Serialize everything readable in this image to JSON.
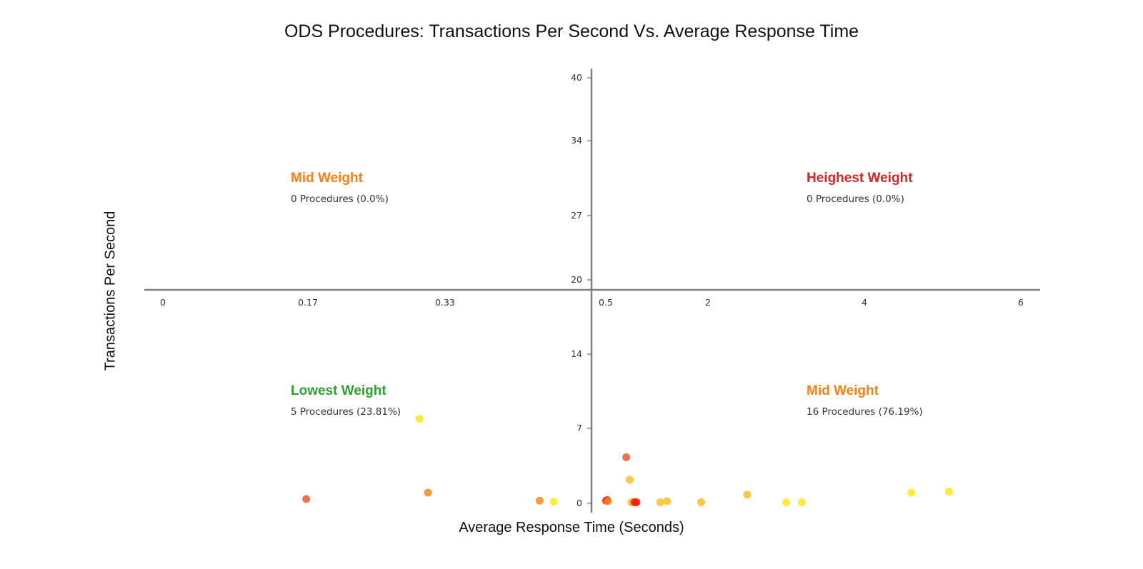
{
  "chart_data": {
    "type": "scatter",
    "title": "ODS Procedures: Transactions Per Second Vs. Average Response Time",
    "xlabel": "Average Response Time (Seconds)",
    "ylabel": "Transactions Per Second",
    "x_ticks": [
      "0",
      "0.17",
      "0.33",
      "0.5",
      "2",
      "4",
      "6"
    ],
    "y_ticks": [
      "0",
      "7",
      "14",
      "20",
      "27",
      "34",
      "40"
    ],
    "x_scale": "piecewise: left half 0 to 0.5, right half 0.5 to 6",
    "y_scale": "piecewise: bottom half 0 to 20, top half 20 to 40",
    "xlim": [
      0,
      6
    ],
    "ylim": [
      0,
      40
    ],
    "grid": false,
    "legend": "none",
    "quadrants": [
      {
        "id": "top-left",
        "title": "Mid Weight",
        "count_text": "0 Procedures (0.0%)",
        "color": "#ff7f0e"
      },
      {
        "id": "top-right",
        "title": "Heighest Weight",
        "count_text": "0 Procedures (0.0%)",
        "color": "#d62728"
      },
      {
        "id": "bottom-left",
        "title": "Lowest Weight",
        "count_text": "5 Procedures (23.81%)",
        "color": "#2ca02c"
      },
      {
        "id": "bottom-right",
        "title": "Mid Weight",
        "count_text": "16 Procedures (76.19%)",
        "color": "#ff7f0e"
      }
    ],
    "points": [
      {
        "x": 0.168,
        "y": 0.4,
        "color": "#f05a28"
      },
      {
        "x": 0.3,
        "y": 7.9,
        "color": "#ffe81a"
      },
      {
        "x": 0.31,
        "y": 1.0,
        "color": "#f58a1f"
      },
      {
        "x": 0.43,
        "y": 0.25,
        "color": "#f58a1f"
      },
      {
        "x": 0.445,
        "y": 0.15,
        "color": "#ffe81a"
      },
      {
        "x": 0.505,
        "y": 0.25,
        "color": "#ff1a00"
      },
      {
        "x": 0.52,
        "y": 0.3,
        "color": "#ff1a00"
      },
      {
        "x": 0.53,
        "y": 0.2,
        "color": "#f58a1f"
      },
      {
        "x": 0.8,
        "y": 4.3,
        "color": "#f05a28"
      },
      {
        "x": 0.85,
        "y": 2.2,
        "color": "#fbbf24"
      },
      {
        "x": 0.875,
        "y": 0.1,
        "color": "#fbbf24"
      },
      {
        "x": 0.92,
        "y": 0.1,
        "color": "#ff1a00"
      },
      {
        "x": 0.95,
        "y": 0.1,
        "color": "#ff1a00"
      },
      {
        "x": 1.3,
        "y": 0.1,
        "color": "#fbbf24"
      },
      {
        "x": 1.4,
        "y": 0.2,
        "color": "#fbbf24"
      },
      {
        "x": 1.9,
        "y": 0.1,
        "color": "#fbbf24"
      },
      {
        "x": 2.5,
        "y": 0.8,
        "color": "#fbbf24"
      },
      {
        "x": 3.0,
        "y": 0.1,
        "color": "#ffe81a"
      },
      {
        "x": 3.2,
        "y": 0.1,
        "color": "#ffe81a"
      },
      {
        "x": 4.6,
        "y": 1.0,
        "color": "#ffe81a"
      },
      {
        "x": 5.08,
        "y": 1.1,
        "color": "#ffe81a"
      }
    ]
  }
}
